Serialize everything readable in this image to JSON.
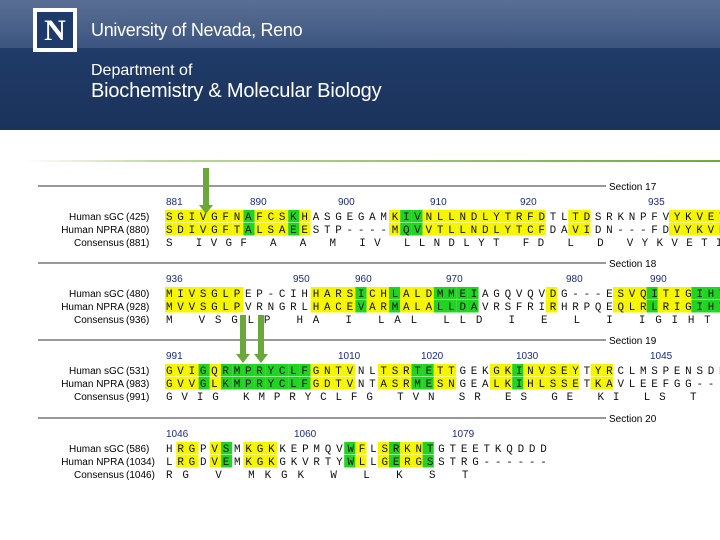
{
  "header": {
    "logo_letter": "N",
    "university": "University of Nevada, Reno",
    "department_line1": "Department of",
    "department_line2": "Biochemistry & Molecular Biology"
  },
  "colors": {
    "banner": "#1f3a66",
    "yellow": "#f5f500",
    "green": "#22d422",
    "arrow": "#6aa83a",
    "position": "#1a2a8a"
  },
  "alignment": {
    "sections": [
      {
        "label": "Section 17",
        "positions": [
          "881",
          "890",
          "900",
          "910",
          "920",
          "935"
        ],
        "rows": [
          {
            "name": "",
            "num": "(881)",
            "seq": "881                                                       935",
            "hide": true
          },
          {
            "name": "Human sGC",
            "num": "(425)",
            "seq": "SGIVGFNAFCSKHASGEGAMKIVNLLNDLYTRFDTLTDSRKNPFVYKVETVGDKY",
            "y": "1111111211121000000012211111111111001100000001111111111",
            "is_seq": true
          },
          {
            "name": "Human NPRA",
            "num": "(880)",
            "seq": "SDIVGFTALSAEESTP----MQVVTLLNDLYTCFDAVIDN---FDVYKVETIGDAY",
            "y": "1111111211121000000012211111111111001100000001111111111",
            "is_seq": true
          },
          {
            "name": "Consensus",
            "num": "(881)",
            "seq": "S IVGF A  A        M IV LLNDLYT FD L D      VYKVETI D Y"
          }
        ]
      },
      {
        "label": "Section 18",
        "positions": [
          "936",
          "950",
          "960",
          "970",
          "980",
          "990"
        ],
        "rows": [
          {
            "name": "Human sGC",
            "num": "(480)",
            "seq": "MIVSGLPEP-CIHHARSICHLALDMMEIAGQVQVDG---ESVQITIGIHTGEVVT",
            "is_seq": true,
            "y": "1111111000000111121121112222000000100000111211122222111"
          },
          {
            "name": "Human NPRA",
            "num": "(928)",
            "seq": "MVVSGLPVRNGRLHACEVARMALALLDAVRSFRIRHRPQEQLRLRIGIHTGPVCA",
            "is_seq": true,
            "y": "1111111000000111121121112222000000100000111211122222111"
          },
          {
            "name": "Consensus",
            "num": "(936)",
            "seq": "M VSGLP      HA  I  LAL LLD      I     E L I IGIHTG V"
          }
        ]
      },
      {
        "label": "Section 19",
        "positions": [
          "991",
          "1010",
          "1020",
          "1030",
          "1045"
        ],
        "rows": [
          {
            "name": "Human sGC",
            "num": "(531)",
            "seq": "GVIGQRMPRYCLFGNTVNLTSRTETTGEKGKINVSEYTYRCLMSPENSDPQFHLE",
            "is_seq": true,
            "y": "1112122222222111100111221100011211111011000000000000111"
          },
          {
            "name": "Human NPRA",
            "num": "(983)",
            "seq": "GVVGLKMPRYCLFGDTVNTASRMESNGEALKIHLSSETKAVLEEFGG----FELE",
            "is_seq": true,
            "y": "1112122222222111100111221100011211111011000000000000111"
          },
          {
            "name": "Consensus",
            "num": "(991)",
            "seq": "GVIG KMPRYCLFG TVN  SR ES GE  KI LS  T    L          F LE"
          }
        ]
      },
      {
        "label": "Section 20",
        "positions": [
          "1046",
          "1060",
          "1079"
        ],
        "rows": [
          {
            "name": "Human sGC",
            "num": "(586)",
            "seq": "HRGPVSMKGKKEPMQVWFLSRKNTGTEETKQDDD",
            "is_seq": true,
            "y": "0110120111000000210121120000000000"
          },
          {
            "name": "Human NPRA",
            "num": "(1034)",
            "seq": "LRGDVEMKGKGKVRTYWLLGERGSSTRG------",
            "is_seq": true,
            "y": "0110120111000000210121120000000000"
          },
          {
            "name": "Consensus",
            "num": "(1046)",
            "seq": " RG V MKGK      W L   K S T"
          }
        ]
      }
    ]
  }
}
